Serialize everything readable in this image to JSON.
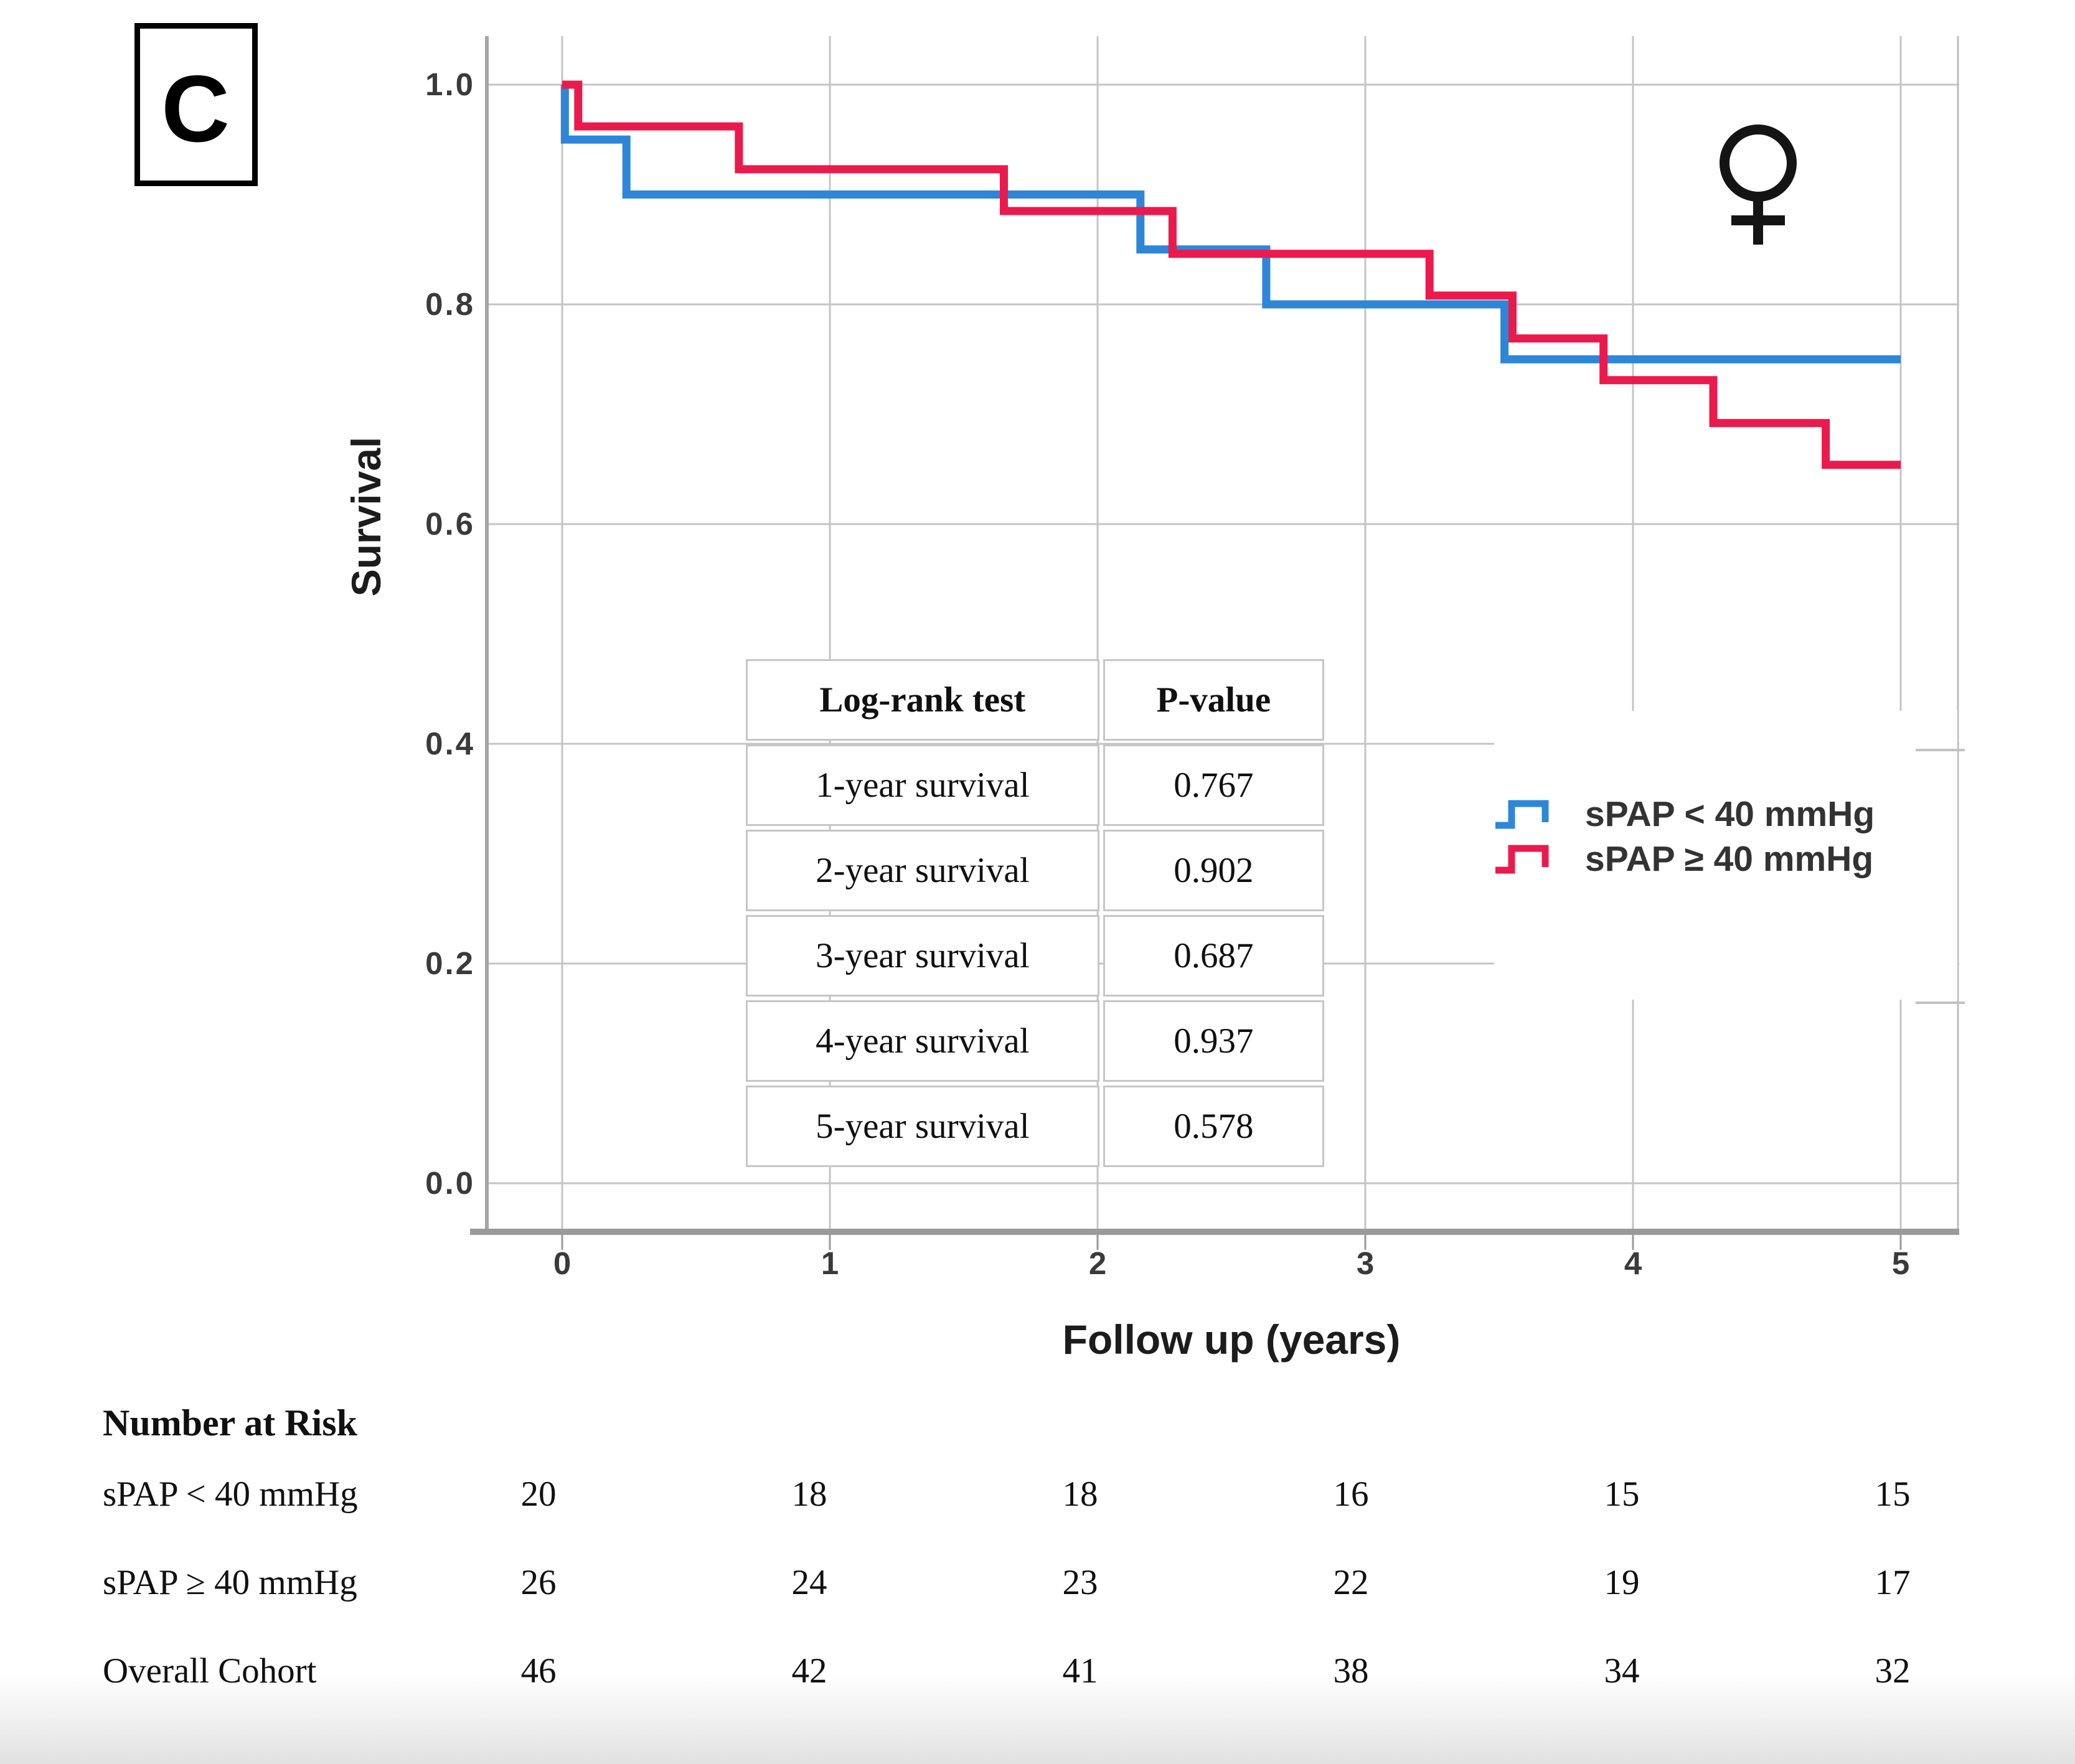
{
  "panel": {
    "label": "C"
  },
  "chart": {
    "ylabel": "Survival",
    "xlabel": "Follow up (years)",
    "x_tick_labels": [
      "0",
      "1",
      "2",
      "3",
      "4",
      "5"
    ],
    "y_tick_labels": [
      "1.0",
      "0.8",
      "0.6",
      "0.4",
      "0.2",
      "0.0"
    ]
  },
  "chart_data": {
    "type": "line",
    "subtype": "kaplan-meier-step",
    "title": "",
    "xlabel": "Follow up (years)",
    "ylabel": "Survival",
    "x_ticks": [
      0,
      1,
      2,
      3,
      4,
      5
    ],
    "y_ticks": [
      1.0,
      0.8,
      0.6,
      0.4,
      0.2,
      0.0
    ],
    "xlim": [
      -0.29,
      5.22
    ],
    "ylim": [
      -0.06,
      1.06
    ],
    "grid": true,
    "legend_position": "right-middle",
    "annotations": {
      "sex_symbol": "female"
    },
    "series": [
      {
        "name": "sPAP < 40 mmHg",
        "color": "#2E86D8",
        "end_x": 5.0,
        "step_points": [
          [
            0,
            1.0
          ],
          [
            0.01,
            0.95
          ],
          [
            0.24,
            0.9
          ],
          [
            2.16,
            0.85
          ],
          [
            2.63,
            0.8
          ],
          [
            3.52,
            0.75
          ]
        ]
      },
      {
        "name": "sPAP ≥ 40 mmHg",
        "color": "#EB1A4C",
        "end_x": 5.0,
        "step_points": [
          [
            0,
            1.0
          ],
          [
            0.06,
            0.962
          ],
          [
            0.66,
            0.923
          ],
          [
            1.65,
            0.885
          ],
          [
            2.28,
            0.846
          ],
          [
            3.24,
            0.808
          ],
          [
            3.55,
            0.769
          ],
          [
            3.89,
            0.731
          ],
          [
            4.3,
            0.692
          ],
          [
            4.72,
            0.654
          ]
        ]
      }
    ]
  },
  "logrank_table": {
    "headers": [
      "Log-rank test",
      "P-value"
    ],
    "rows": [
      [
        "1-year survival",
        "0.767"
      ],
      [
        "2-year survival",
        "0.902"
      ],
      [
        "3-year survival",
        "0.687"
      ],
      [
        "4-year survival",
        "0.937"
      ],
      [
        "5-year survival",
        "0.578"
      ]
    ]
  },
  "legend": {
    "items": [
      {
        "label": "sPAP < 40 mmHg",
        "color": "#2E86D8"
      },
      {
        "label": "sPAP ≥ 40 mmHg",
        "color": "#EB1A4C"
      }
    ]
  },
  "number_at_risk": {
    "title": "Number at Risk",
    "rows": [
      {
        "label": "sPAP < 40 mmHg",
        "values": [
          "20",
          "18",
          "18",
          "16",
          "15",
          "15"
        ]
      },
      {
        "label": "sPAP ≥ 40 mmHg",
        "values": [
          "26",
          "24",
          "23",
          "22",
          "19",
          "17"
        ]
      },
      {
        "label": "Overall Cohort",
        "values": [
          "46",
          "42",
          "41",
          "38",
          "34",
          "32"
        ]
      }
    ]
  },
  "colors": {
    "series_blue": "#2E86D8",
    "series_red": "#EB1A4C",
    "gridline": "#c4c4c4",
    "axis": "#9a9a9a",
    "symbol_black": "#141414"
  }
}
